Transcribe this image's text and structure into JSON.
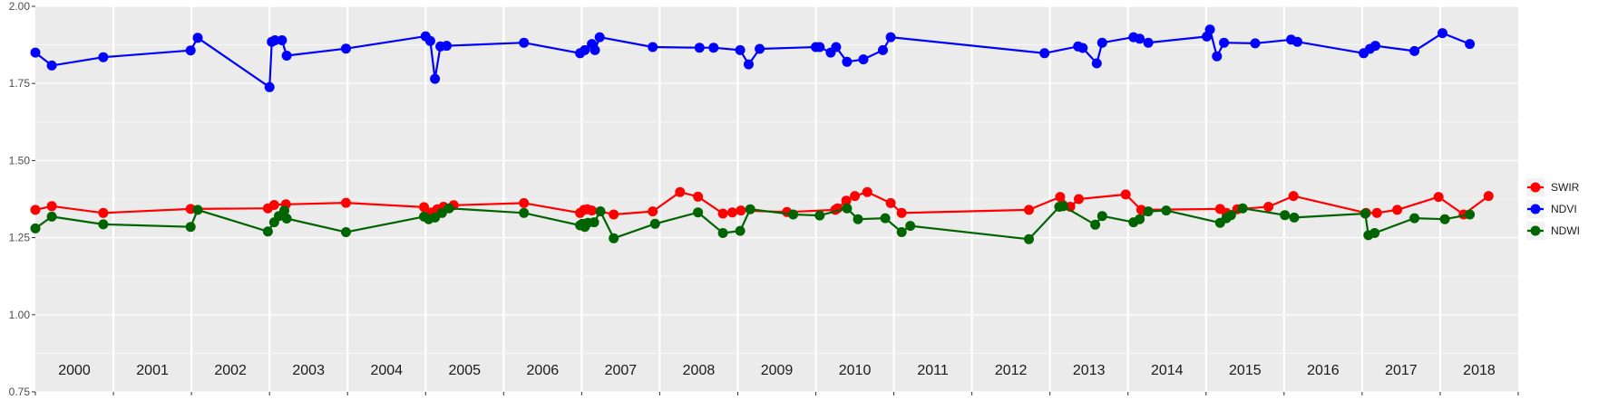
{
  "chart_data": {
    "type": "line",
    "title": "",
    "xlabel": "",
    "ylabel": "",
    "xlim": [
      2000.0,
      2019.0
    ],
    "ylim": [
      0.75,
      2.0
    ],
    "yticks": [
      "0.75",
      "1.00",
      "1.25",
      "1.50",
      "1.75",
      "2.00"
    ],
    "year_labels": [
      "2000",
      "2001",
      "2002",
      "2003",
      "2004",
      "2005",
      "2006",
      "2007",
      "2008",
      "2009",
      "2010",
      "2011",
      "2012",
      "2013",
      "2014",
      "2015",
      "2016",
      "2017",
      "2018"
    ],
    "grid": true,
    "legend_position": "right",
    "series": [
      {
        "name": "SWIR",
        "color": "#ff0000",
        "x": [
          2000.0,
          2000.21,
          2000.87,
          2001.99,
          2002.98,
          2003.06,
          2003.21,
          2003.98,
          2004.98,
          2005.07,
          2005.15,
          2005.23,
          2005.36,
          2006.26,
          2006.98,
          2007.03,
          2007.07,
          2007.13,
          2007.24,
          2007.41,
          2007.91,
          2008.26,
          2008.49,
          2008.81,
          2008.93,
          2009.04,
          2009.63,
          2010.25,
          2010.28,
          2010.39,
          2010.5,
          2010.66,
          2010.96,
          2011.1,
          2012.73,
          2013.13,
          2013.26,
          2013.37,
          2013.97,
          2014.17,
          2015.18,
          2015.26,
          2015.4,
          2015.8,
          2016.12,
          2017.05,
          2017.19,
          2017.45,
          2017.98,
          2018.3,
          2018.62
        ],
        "y": [
          1.34,
          1.352,
          1.33,
          1.343,
          1.345,
          1.356,
          1.358,
          1.363,
          1.349,
          1.332,
          1.342,
          1.35,
          1.355,
          1.362,
          1.33,
          1.34,
          1.342,
          1.338,
          1.335,
          1.325,
          1.335,
          1.398,
          1.383,
          1.328,
          1.332,
          1.338,
          1.333,
          1.34,
          1.345,
          1.37,
          1.385,
          1.398,
          1.362,
          1.33,
          1.34,
          1.382,
          1.35,
          1.375,
          1.39,
          1.34,
          1.343,
          1.33,
          1.342,
          1.35,
          1.385,
          1.33,
          1.33,
          1.34,
          1.382,
          1.325,
          1.385
        ]
      },
      {
        "name": "NDVI",
        "color": "#0000ff",
        "x": [
          2000.0,
          2000.21,
          2000.87,
          2001.99,
          2002.08,
          2003.0,
          2003.03,
          2003.07,
          2003.16,
          2003.22,
          2003.98,
          2005.0,
          2005.06,
          2005.12,
          2005.19,
          2005.27,
          2006.26,
          2006.98,
          2007.04,
          2007.13,
          2007.17,
          2007.23,
          2007.91,
          2008.51,
          2008.69,
          2009.03,
          2009.14,
          2009.28,
          2010.0,
          2010.05,
          2010.19,
          2010.26,
          2010.4,
          2010.61,
          2010.86,
          2010.96,
          2012.93,
          2013.36,
          2013.42,
          2013.6,
          2013.67,
          2014.07,
          2014.15,
          2014.26,
          2015.01,
          2015.05,
          2015.14,
          2015.23,
          2015.63,
          2016.09,
          2016.17,
          2017.02,
          2017.1,
          2017.17,
          2017.67,
          2018.03,
          2018.38
        ],
        "y": [
          1.85,
          1.808,
          1.835,
          1.857,
          1.898,
          1.738,
          1.885,
          1.89,
          1.89,
          1.84,
          1.863,
          1.903,
          1.888,
          1.765,
          1.87,
          1.872,
          1.882,
          1.848,
          1.858,
          1.878,
          1.858,
          1.9,
          1.868,
          1.866,
          1.866,
          1.858,
          1.812,
          1.862,
          1.868,
          1.868,
          1.85,
          1.868,
          1.82,
          1.828,
          1.858,
          1.9,
          1.848,
          1.87,
          1.865,
          1.815,
          1.882,
          1.9,
          1.895,
          1.882,
          1.902,
          1.925,
          1.838,
          1.882,
          1.88,
          1.892,
          1.885,
          1.848,
          1.862,
          1.872,
          1.855,
          1.913,
          1.878
        ]
      },
      {
        "name": "NDWI",
        "color": "#006400",
        "x": [
          2000.0,
          2000.21,
          2000.87,
          2001.99,
          2002.08,
          2002.98,
          2003.06,
          2003.12,
          2003.19,
          2003.22,
          2003.98,
          2004.98,
          2005.04,
          2005.12,
          2005.21,
          2005.3,
          2006.26,
          2006.98,
          2007.01,
          2007.04,
          2007.08,
          2007.16,
          2007.24,
          2007.41,
          2007.94,
          2008.49,
          2008.81,
          2009.03,
          2009.16,
          2009.71,
          2010.05,
          2010.4,
          2010.54,
          2010.89,
          2011.1,
          2011.21,
          2012.73,
          2013.12,
          2013.17,
          2013.58,
          2013.67,
          2014.07,
          2014.15,
          2014.26,
          2014.49,
          2015.18,
          2015.26,
          2015.32,
          2015.47,
          2016.01,
          2016.13,
          2017.04,
          2017.08,
          2017.16,
          2017.67,
          2018.06,
          2018.38
        ],
        "y": [
          1.28,
          1.318,
          1.293,
          1.285,
          1.34,
          1.27,
          1.3,
          1.32,
          1.338,
          1.312,
          1.268,
          1.318,
          1.31,
          1.315,
          1.33,
          1.345,
          1.33,
          1.29,
          1.295,
          1.285,
          1.298,
          1.3,
          1.335,
          1.248,
          1.295,
          1.332,
          1.265,
          1.272,
          1.342,
          1.325,
          1.322,
          1.345,
          1.31,
          1.313,
          1.268,
          1.288,
          1.245,
          1.35,
          1.352,
          1.292,
          1.32,
          1.3,
          1.31,
          1.335,
          1.338,
          1.298,
          1.313,
          1.323,
          1.345,
          1.323,
          1.315,
          1.328,
          1.258,
          1.265,
          1.313,
          1.31,
          1.325
        ]
      }
    ]
  }
}
